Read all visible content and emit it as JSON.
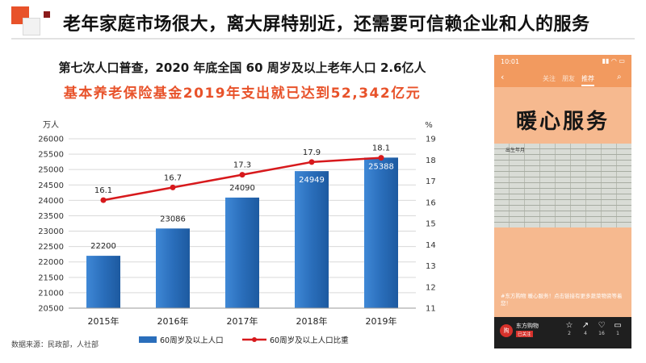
{
  "header": {
    "title": "老年家庭市场很大，离大屏特别近，还需要可信赖企业和人的服务"
  },
  "subtitles": {
    "line1": "第七次人口普查，2020 年底全国 60 周岁及以上老年人口 2.6亿人",
    "line2": "基本养老保险基金2019年支出就已达到52,342亿元"
  },
  "colors": {
    "accent": "#e8522a",
    "bar": "#2a6ebb",
    "line": "#d7191c"
  },
  "chart_data": {
    "type": "bar",
    "categories": [
      "2015年",
      "2016年",
      "2017年",
      "2018年",
      "2019年"
    ],
    "series": [
      {
        "name": "60周岁及以上人口",
        "type": "bar",
        "axis": "left",
        "values": [
          22200,
          23086,
          24090,
          24949,
          25388
        ]
      },
      {
        "name": "60周岁及以上人口比重",
        "type": "line",
        "axis": "right",
        "values": [
          16.1,
          16.7,
          17.3,
          17.9,
          18.1
        ]
      }
    ],
    "left_axis": {
      "unit": "万人",
      "ylim": [
        20500,
        26000
      ],
      "ticks": [
        "20500",
        "21000",
        "21500",
        "22000",
        "22500",
        "23000",
        "23500",
        "24000",
        "24500",
        "25000",
        "25500",
        "26000"
      ]
    },
    "right_axis": {
      "unit": "%",
      "ylim": [
        11,
        19
      ],
      "ticks": [
        "11",
        "12",
        "13",
        "14",
        "15",
        "16",
        "17",
        "18",
        "19"
      ]
    },
    "legend": {
      "bar_label": "60周岁及以上人口",
      "line_label": "60周岁及以上人口比重",
      "position": "bottom"
    },
    "grid": true
  },
  "source": "数据来源：民政部，人社部",
  "phone": {
    "time": "10:01",
    "status_icons": "▮▮ ◠ ▭",
    "nav": {
      "back": "‹",
      "items": [
        "关注",
        "朋友",
        "推荐"
      ],
      "search": "⌕"
    },
    "hero_text": "暖心服务",
    "doc_header": "出生年月",
    "caption": "#东方购物 暖心服务！点击链接有更多蔬菜物资等着您！",
    "account_name": "东方购物",
    "account_avatar": "购",
    "account_tag": "已关注",
    "actions": [
      {
        "icon": "☆",
        "count": "2"
      },
      {
        "icon": "↗",
        "count": "4"
      },
      {
        "icon": "♡",
        "count": "16"
      },
      {
        "icon": "▭",
        "count": "1"
      }
    ]
  }
}
